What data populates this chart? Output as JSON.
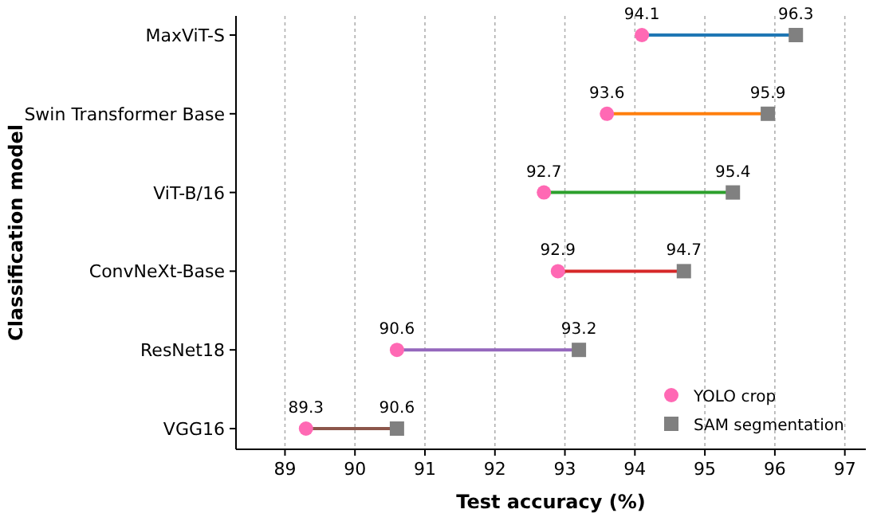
{
  "chart_data": {
    "type": "scatter",
    "orientation": "horizontal",
    "xlabel": "Test accuracy (%)",
    "ylabel": "Classification model",
    "categories": [
      "MaxViT-S",
      "Swin Transformer Base",
      "ViT-B/16",
      "ConvNeXt-Base",
      "ResNet18",
      "VGG16"
    ],
    "colors": [
      "#1f77b4",
      "#ff7f0e",
      "#2ca02c",
      "#d62728",
      "#9467bd",
      "#8c564b"
    ],
    "series": [
      {
        "name": "YOLO crop",
        "color": "#ff69b4",
        "marker": "circle",
        "values": [
          94.1,
          93.6,
          92.7,
          92.9,
          90.6,
          89.3
        ]
      },
      {
        "name": "SAM segmentation",
        "color": "#808080",
        "marker": "square",
        "values": [
          96.3,
          95.9,
          95.4,
          94.7,
          93.2,
          90.6
        ]
      }
    ],
    "xlim": [
      88.3,
      97.3
    ],
    "xticks": [
      89,
      90,
      91,
      92,
      93,
      94,
      95,
      96,
      97
    ],
    "grid": "x",
    "legend": "bottom right",
    "data_labels": true
  }
}
